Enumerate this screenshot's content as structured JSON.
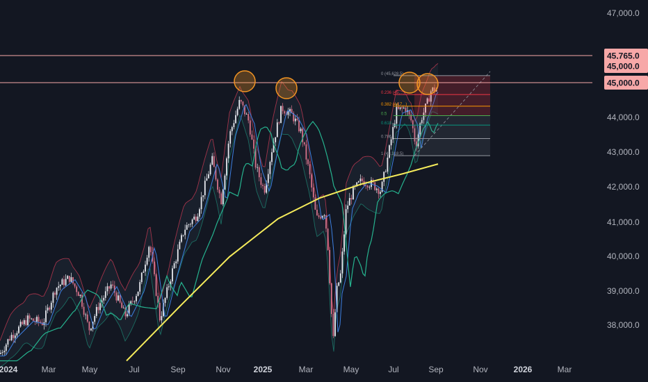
{
  "chart_data": {
    "type": "candlestick",
    "title": "",
    "x_tick_labels": [
      "2024",
      "Mar",
      "May",
      "Jul",
      "Sep",
      "Nov",
      "2025",
      "Mar",
      "May",
      "Jul",
      "Sep",
      "Nov",
      "2026",
      "Mar"
    ],
    "y_tick_labels": [
      "47,000.0",
      "46,000.0",
      "45,000.0",
      "44,000.0",
      "43,000.0",
      "42,000.0",
      "41,000.0",
      "40,000.0",
      "39,000.0",
      "38,000.0"
    ],
    "ylim": [
      37000,
      47400
    ],
    "price_levels": [
      {
        "label": "45,765.0",
        "value": 45765,
        "color": "#f7a8a8"
      },
      {
        "label": "45,000.0",
        "value": 45000,
        "color": "#f7a8a8"
      },
      {
        "label": "45,000.0",
        "value": 45000,
        "color": "#f7a8a8"
      }
    ],
    "fibonacci": {
      "levels": [
        {
          "label": "0 (45,628.5)",
          "ratio": 0,
          "color": "#9598a1"
        },
        {
          "label": "0.236 (45,...)",
          "ratio": 0.236,
          "color": "#f23645"
        },
        {
          "label": "0.382 (44,7...)",
          "ratio": 0.382,
          "color": "#ff9800"
        },
        {
          "label": "0.5",
          "ratio": 0.5,
          "color": "#4caf50"
        },
        {
          "label": "0.618",
          "ratio": 0.618,
          "color": "#089981"
        },
        {
          "label": "0.786",
          "ratio": 0.786,
          "color": "#9598a1"
        },
        {
          "label": "1 (43,318.5)",
          "ratio": 1,
          "color": "#9598a1"
        }
      ],
      "high": 45628.5,
      "low": 43318.5
    },
    "indicators": [
      "Bollinger Bands (upper/lower)",
      "Moving average (fast)",
      "Moving average (medium)",
      "Moving average (slow)"
    ],
    "colors": {
      "background": "#131722",
      "up": "#e8eaf0",
      "down": "#d7728a",
      "ma_slow": "#f5eb5b",
      "ma_medium": "#26b38f",
      "ma_fast": "#3d7fe0",
      "band": "#c43a52",
      "circle": "#f29423"
    }
  }
}
